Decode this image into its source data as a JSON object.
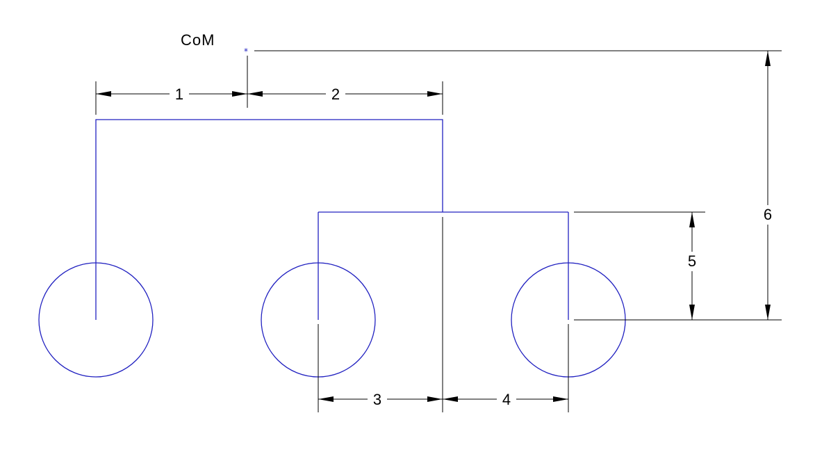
{
  "diagram": {
    "com_label": "CoM",
    "com_marker": "*",
    "dimensions": {
      "d1": "1",
      "d2": "2",
      "d3": "3",
      "d4": "4",
      "d5": "5",
      "d6": "6"
    },
    "colors": {
      "geometry": "#2020c0",
      "dimension": "#000000",
      "background": "#ffffff"
    }
  }
}
